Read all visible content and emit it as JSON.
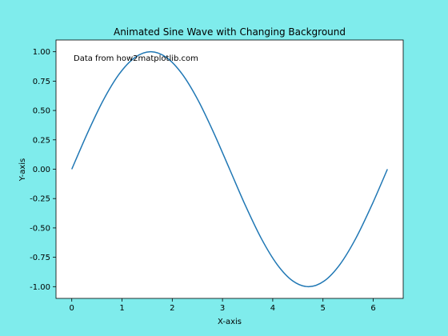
{
  "chart_data": {
    "type": "line",
    "title": "Animated Sine Wave with Changing Background",
    "xlabel": "X-axis",
    "ylabel": "Y-axis",
    "annotation": "Data from how2matplotlib.com",
    "xlim": [
      -0.314,
      6.597
    ],
    "ylim": [
      -1.1,
      1.1
    ],
    "xticks": [
      0,
      1,
      2,
      3,
      4,
      5,
      6
    ],
    "xtick_labels": [
      "0",
      "1",
      "2",
      "3",
      "4",
      "5",
      "6"
    ],
    "yticks": [
      1.0,
      0.75,
      0.5,
      0.25,
      0.0,
      -0.25,
      -0.5,
      -0.75,
      -1.0
    ],
    "ytick_labels": [
      "1.00",
      "0.75",
      "0.50",
      "0.25",
      "0.00",
      "-0.25",
      "-0.50",
      "-0.75",
      "-1.00"
    ],
    "series": [
      {
        "x": [
          0,
          0.314,
          0.628,
          0.942,
          1.257,
          1.571,
          1.885,
          2.199,
          2.513,
          2.827,
          3.142,
          3.456,
          3.77,
          4.084,
          4.398,
          4.712,
          5.027,
          5.341,
          5.655,
          5.969,
          6.283
        ],
        "y": [
          0,
          0.309,
          0.588,
          0.809,
          0.951,
          1.0,
          0.951,
          0.809,
          0.588,
          0.309,
          0,
          -0.309,
          -0.588,
          -0.809,
          -0.951,
          -1.0,
          -0.951,
          -0.809,
          -0.588,
          -0.309,
          0
        ],
        "color": "#1f77b4"
      }
    ],
    "grid": false,
    "figure_background": "#7fecec",
    "axes_background": "#ffffff"
  }
}
